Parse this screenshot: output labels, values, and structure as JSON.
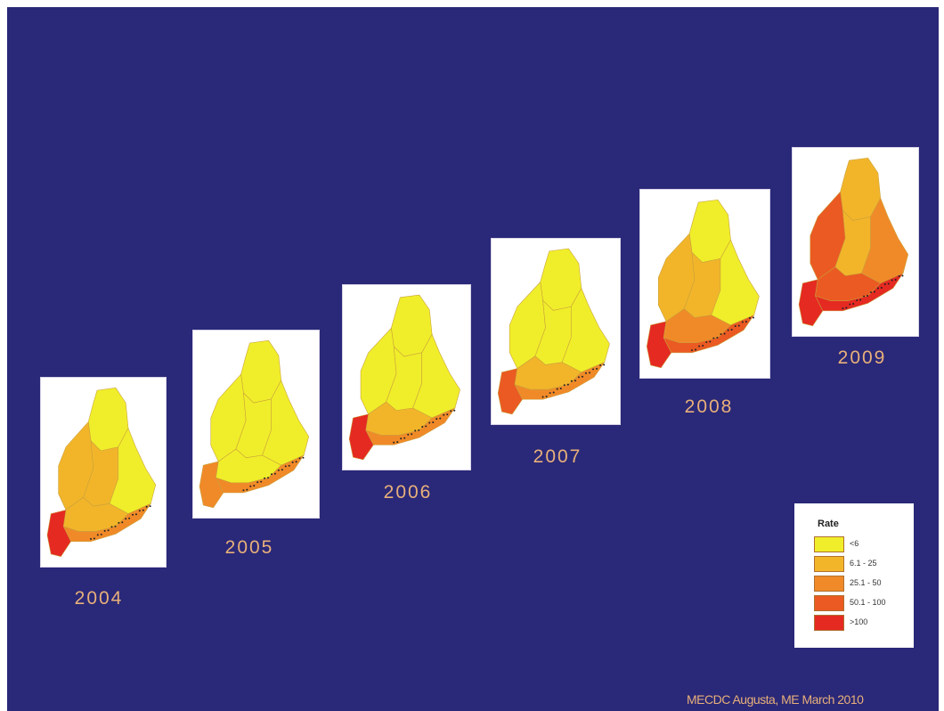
{
  "colors": {
    "background": "#2a2878",
    "label_color": "#e8b07a",
    "class_1": "#f0ee2a",
    "class_2": "#f2b52a",
    "class_3": "#f08a28",
    "class_4": "#ea5a22",
    "class_5": "#e52a22"
  },
  "maps": [
    {
      "year": "2004",
      "regions": {
        "north": "class_1",
        "west": "class_2",
        "center": "class_2",
        "east": "class_1",
        "south": "class_2",
        "coast": "class_3",
        "tip": "class_5"
      }
    },
    {
      "year": "2005",
      "regions": {
        "north": "class_1",
        "west": "class_1",
        "center": "class_1",
        "east": "class_1",
        "south": "class_1",
        "coast": "class_3",
        "tip": "class_3"
      }
    },
    {
      "year": "2006",
      "regions": {
        "north": "class_1",
        "west": "class_1",
        "center": "class_1",
        "east": "class_1",
        "south": "class_2",
        "coast": "class_3",
        "tip": "class_5"
      }
    },
    {
      "year": "2007",
      "regions": {
        "north": "class_1",
        "west": "class_1",
        "center": "class_1",
        "east": "class_1",
        "south": "class_2",
        "coast": "class_3",
        "tip": "class_4"
      }
    },
    {
      "year": "2008",
      "regions": {
        "north": "class_1",
        "west": "class_2",
        "center": "class_2",
        "east": "class_1",
        "south": "class_3",
        "coast": "class_4",
        "tip": "class_5"
      }
    },
    {
      "year": "2009",
      "regions": {
        "north": "class_2",
        "west": "class_4",
        "center": "class_2",
        "east": "class_3",
        "south": "class_4",
        "coast": "class_5",
        "tip": "class_5"
      }
    }
  ],
  "legend": {
    "title": "Rate",
    "items": [
      {
        "label": "<6",
        "color": "class_1"
      },
      {
        "label": "6.1 - 25",
        "color": "class_2"
      },
      {
        "label": "25.1 - 50",
        "color": "class_3"
      },
      {
        "label": "50.1 - 100",
        "color": "class_4"
      },
      {
        "label": ">100",
        "color": "class_5"
      }
    ]
  },
  "credit": "MECDC Augusta, ME March 2010"
}
